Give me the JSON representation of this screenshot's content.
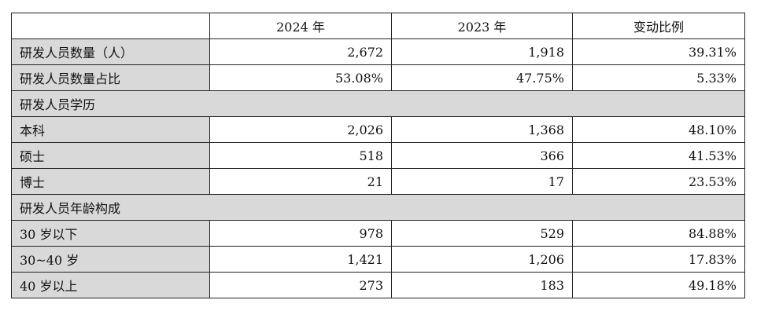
{
  "table": {
    "headers": [
      "",
      "2024 年",
      "2023 年",
      "变动比例"
    ],
    "rows": [
      {
        "type": "data",
        "label": "研发人员数量（人）",
        "v2024": "2,672",
        "v2023": "1,918",
        "change": "39.31%"
      },
      {
        "type": "data",
        "label": "研发人员数量占比",
        "v2024": "53.08%",
        "v2023": "47.75%",
        "change": "5.33%"
      },
      {
        "type": "section",
        "label": "研发人员学历"
      },
      {
        "type": "data",
        "label": "本科",
        "v2024": "2,026",
        "v2023": "1,368",
        "change": "48.10%"
      },
      {
        "type": "data",
        "label": "硕士",
        "v2024": "518",
        "v2023": "366",
        "change": "41.53%"
      },
      {
        "type": "data",
        "label": "博士",
        "v2024": "21",
        "v2023": "17",
        "change": "23.53%"
      },
      {
        "type": "section",
        "label": "研发人员年龄构成"
      },
      {
        "type": "data",
        "label": "30 岁以下",
        "v2024": "978",
        "v2023": "529",
        "change": "84.88%"
      },
      {
        "type": "data",
        "label": "30~40 岁",
        "v2024": "1,421",
        "v2023": "1,206",
        "change": "17.83%"
      },
      {
        "type": "data",
        "label": "40 岁以上",
        "v2024": "273",
        "v2023": "183",
        "change": "49.18%"
      }
    ]
  },
  "colors": {
    "label_bg": "#d9d9d9",
    "border": "#222222"
  }
}
